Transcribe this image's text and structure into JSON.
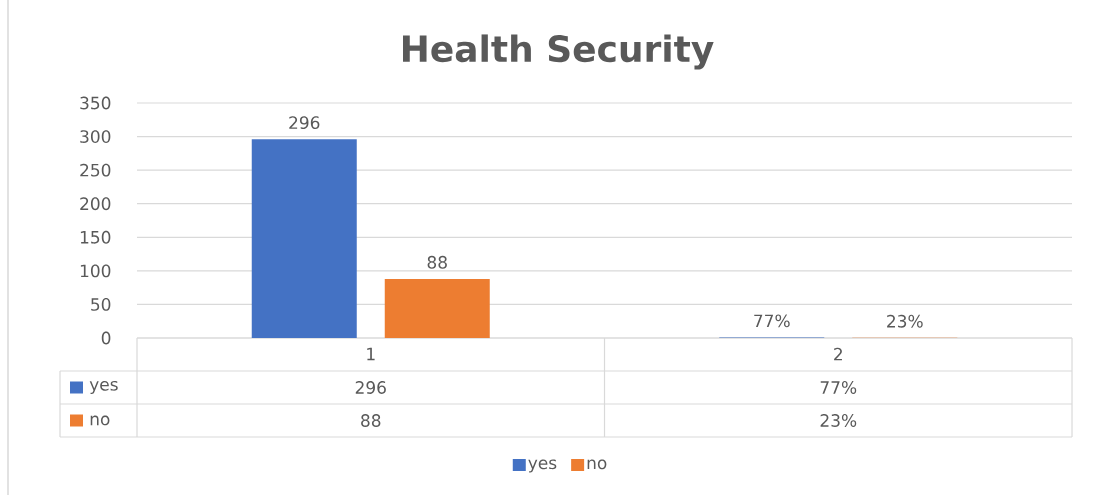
{
  "chart_data": {
    "type": "bar",
    "title": "Health Security",
    "categories": [
      "1",
      "2"
    ],
    "series": [
      {
        "name": "yes",
        "color": "#4472c4",
        "values": [
          296,
          0.77
        ],
        "value_labels": [
          "296",
          "77%"
        ]
      },
      {
        "name": "no",
        "color": "#ed7d31",
        "values": [
          88,
          0.23
        ],
        "value_labels": [
          "88",
          "23%"
        ]
      }
    ],
    "ylim": [
      0,
      350
    ],
    "yticks": [
      0,
      50,
      100,
      150,
      200,
      250,
      300,
      350
    ],
    "grid": "y",
    "legend": "bottom"
  }
}
